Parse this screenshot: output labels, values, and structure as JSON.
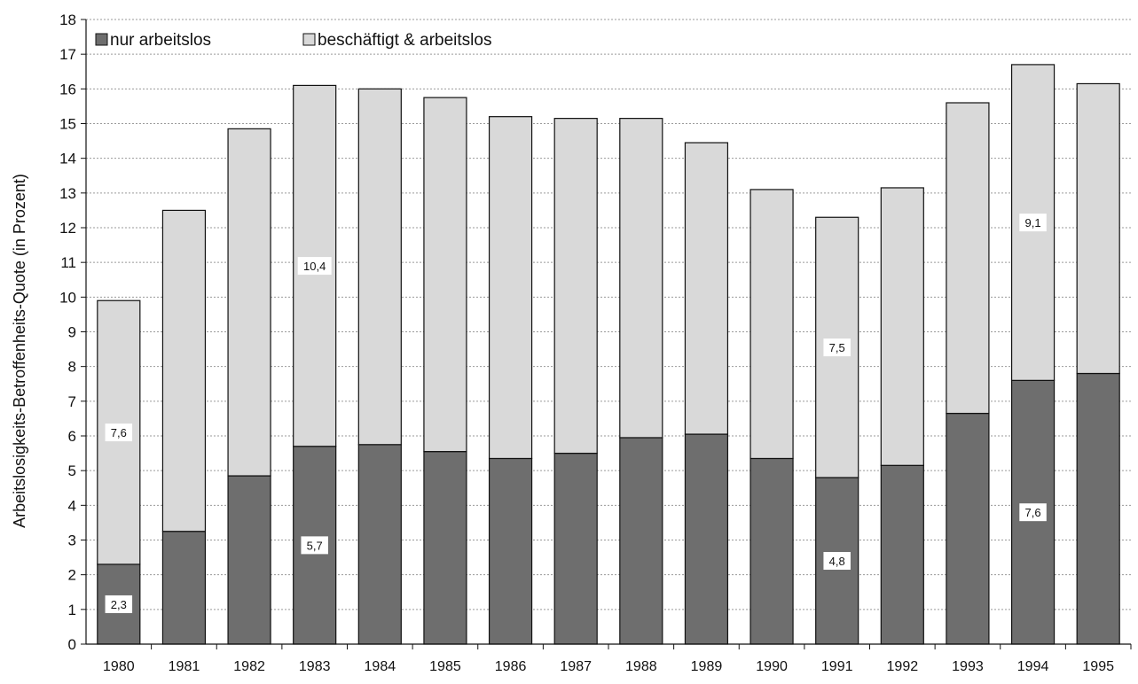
{
  "chart_data": {
    "type": "bar",
    "stacked": true,
    "title": "",
    "xlabel": "",
    "ylabel": "Arbeitslosigkeits-Betroffenheits-Quote (in Prozent)",
    "ylim": [
      0,
      18
    ],
    "yticks": [
      0,
      1,
      2,
      3,
      4,
      5,
      6,
      7,
      8,
      9,
      10,
      11,
      12,
      13,
      14,
      15,
      16,
      17,
      18
    ],
    "grid": true,
    "legend_position": "top-left",
    "categories": [
      "1980",
      "1981",
      "1982",
      "1983",
      "1984",
      "1985",
      "1986",
      "1987",
      "1988",
      "1989",
      "1990",
      "1991",
      "1992",
      "1993",
      "1994",
      "1995"
    ],
    "series": [
      {
        "name": "nur arbeitslos",
        "color": "#6e6e6e",
        "values": [
          2.3,
          3.25,
          4.85,
          5.7,
          5.75,
          5.55,
          5.35,
          5.5,
          5.95,
          6.05,
          5.35,
          4.8,
          5.15,
          6.65,
          7.6,
          7.8
        ]
      },
      {
        "name": "beschäftigt & arbeitslos",
        "color": "#d9d9d9",
        "values": [
          7.6,
          9.25,
          10.0,
          10.4,
          10.25,
          10.2,
          9.85,
          9.65,
          9.2,
          8.4,
          7.75,
          7.5,
          8.0,
          8.95,
          9.1,
          8.35
        ]
      }
    ],
    "data_labels": [
      {
        "category": "1980",
        "series": 0,
        "text": "2,3"
      },
      {
        "category": "1980",
        "series": 1,
        "text": "7,6"
      },
      {
        "category": "1983",
        "series": 0,
        "text": "5,7"
      },
      {
        "category": "1983",
        "series": 1,
        "text": "10,4"
      },
      {
        "category": "1991",
        "series": 0,
        "text": "4,8"
      },
      {
        "category": "1991",
        "series": 1,
        "text": "7,5"
      },
      {
        "category": "1994",
        "series": 0,
        "text": "7,6"
      },
      {
        "category": "1994",
        "series": 1,
        "text": "9,1"
      }
    ]
  }
}
